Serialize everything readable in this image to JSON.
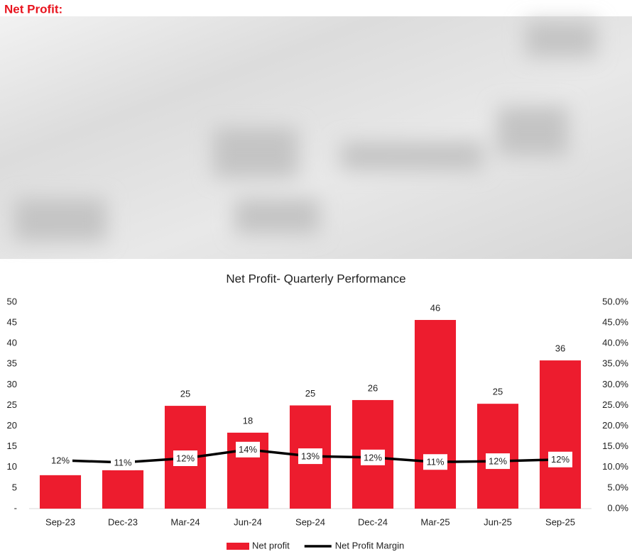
{
  "heading": "Net Profit:",
  "chart_data": {
    "type": "bar",
    "title": "Net Profit- Quarterly Performance",
    "categories": [
      "Sep-23",
      "Dec-23",
      "Mar-24",
      "Jun-24",
      "Sep-24",
      "Dec-24",
      "Mar-25",
      "Jun-25",
      "Sep-25"
    ],
    "series": [
      {
        "name": "Net profit",
        "type": "bar",
        "color": "#ed1c2e",
        "values": [
          8.1,
          9.3,
          24.9,
          18.4,
          25,
          26.3,
          45.7,
          25.4,
          35.9
        ],
        "value_labels": [
          null,
          null,
          "25",
          "18",
          "25",
          "26",
          "46",
          "25",
          "36"
        ]
      },
      {
        "name": "Net Profit Margin",
        "type": "line",
        "axis": "y2",
        "color": "#000000",
        "values": [
          11.7,
          11.2,
          12.2,
          14.3,
          12.7,
          12.4,
          11.3,
          11.5,
          11.9
        ],
        "value_labels": [
          "12%",
          "11%",
          "12%",
          "14%",
          "13%",
          "12%",
          "11%",
          "12%",
          "12%"
        ]
      }
    ],
    "ylim": [
      0,
      50
    ],
    "yticks": [
      {
        "value": 0,
        "label": "-"
      },
      5,
      10,
      15,
      20,
      25,
      30,
      35,
      40,
      45,
      50
    ],
    "y2lim": [
      0,
      50
    ],
    "y2ticks": [
      {
        "value": 0,
        "label": "0.0%"
      },
      {
        "value": 5,
        "label": "5.0%"
      },
      {
        "value": 10,
        "label": "10.0%"
      },
      {
        "value": 15,
        "label": "15.0%"
      },
      {
        "value": 20,
        "label": "20.0%"
      },
      {
        "value": 25,
        "label": "25.0%"
      },
      {
        "value": 30,
        "label": "30.0%"
      },
      {
        "value": 35,
        "label": "35.0%"
      },
      {
        "value": 40,
        "label": "40.0%"
      },
      {
        "value": 45,
        "label": "45.0%"
      },
      {
        "value": 50,
        "label": "50.0%"
      }
    ],
    "grid": false,
    "legend": "bottom"
  }
}
